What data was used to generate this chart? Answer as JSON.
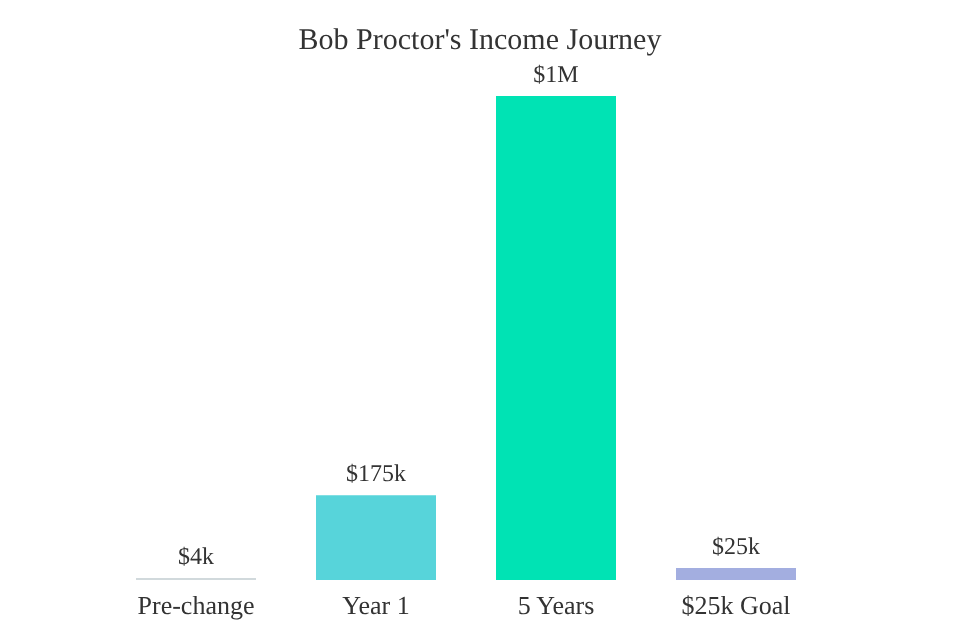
{
  "chart_data": {
    "type": "bar",
    "title": "Bob Proctor's Income Journey",
    "categories": [
      "Pre-change",
      "Year 1",
      "5 Years",
      "$25k Goal"
    ],
    "values": [
      4000,
      175000,
      1000000,
      25000
    ],
    "colors": [
      "#d1d9dc",
      "#57d4da",
      "#00e3b4",
      "#a3aee0"
    ],
    "value_labels": [
      "$4k",
      "$175k",
      "$1M",
      "$25k"
    ],
    "tick_labels": "x",
    "grid": false
  }
}
